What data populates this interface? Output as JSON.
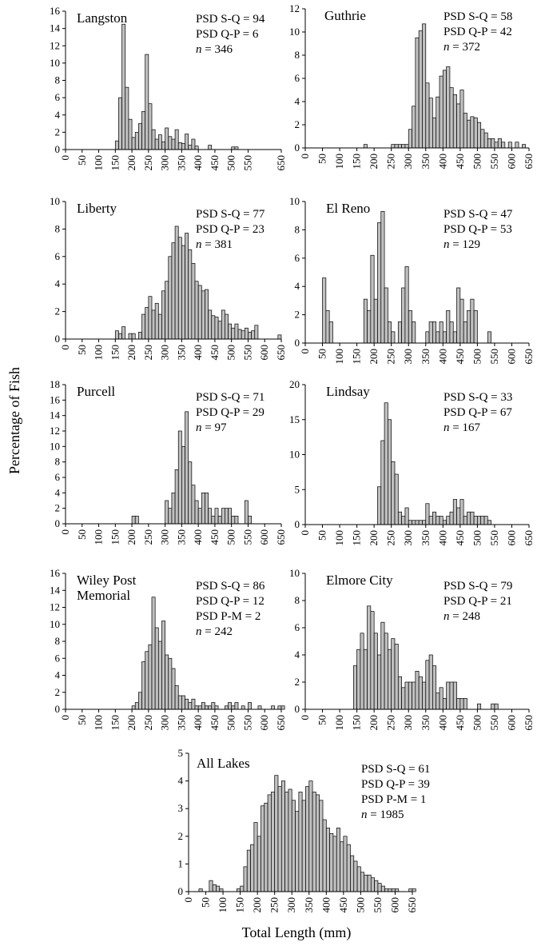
{
  "figure": {
    "ylabel": "Percentage of Fish",
    "xlabel": "Total Length (mm)"
  },
  "chart_data": [
    {
      "type": "bar",
      "title": "Langston",
      "stats": [
        "PSD S-Q = 94",
        "PSD Q-P = 6",
        "n = 346"
      ],
      "xlim": [
        0,
        650
      ],
      "ylim": [
        0,
        16
      ],
      "yticks": [
        0,
        2,
        4,
        6,
        8,
        10,
        12,
        14,
        16
      ],
      "xticks": [
        0,
        50,
        100,
        150,
        200,
        250,
        300,
        350,
        400,
        450,
        500,
        550,
        650
      ],
      "bin_width": 10,
      "x": [
        150,
        160,
        170,
        180,
        190,
        200,
        210,
        220,
        230,
        240,
        250,
        260,
        270,
        280,
        290,
        300,
        310,
        320,
        330,
        340,
        350,
        360,
        370,
        380,
        390,
        430,
        500,
        510
      ],
      "values": [
        1.0,
        6.0,
        14.5,
        7.2,
        3.5,
        1.4,
        2.0,
        3.0,
        4.4,
        11.0,
        5.3,
        2.3,
        1.2,
        1.7,
        0.9,
        2.5,
        1.5,
        1.2,
        2.3,
        0.8,
        0.7,
        1.8,
        0.5,
        1.2,
        0.4,
        0.5,
        0.3,
        0.3
      ]
    },
    {
      "type": "bar",
      "title": "Guthrie",
      "stats": [
        "PSD S-Q = 58",
        "PSD Q-P = 42",
        "n = 372"
      ],
      "xlim": [
        0,
        650
      ],
      "ylim": [
        0,
        12
      ],
      "yticks": [
        0,
        2,
        4,
        6,
        8,
        10,
        12
      ],
      "xticks": [
        0,
        50,
        100,
        150,
        200,
        250,
        300,
        350,
        400,
        450,
        500,
        550,
        600,
        650
      ],
      "bin_width": 10,
      "x": [
        170,
        250,
        260,
        270,
        280,
        290,
        300,
        310,
        320,
        330,
        340,
        350,
        360,
        370,
        380,
        390,
        400,
        410,
        420,
        430,
        440,
        450,
        460,
        470,
        480,
        490,
        500,
        510,
        520,
        530,
        540,
        550,
        560,
        570,
        590,
        610,
        630
      ],
      "values": [
        0.3,
        0.3,
        0.3,
        0.3,
        0.3,
        0.3,
        1.6,
        3.6,
        9.5,
        10.1,
        10.7,
        5.6,
        4.3,
        2.6,
        4.4,
        6.2,
        6.7,
        7.0,
        5.2,
        4.6,
        3.8,
        5.0,
        3.0,
        2.4,
        2.7,
        2.6,
        2.2,
        1.6,
        1.3,
        0.8,
        0.8,
        0.5,
        0.8,
        0.5,
        0.5,
        0.5,
        0.3
      ]
    },
    {
      "type": "bar",
      "title": "Liberty",
      "stats": [
        "PSD S-Q = 77",
        "PSD Q-P = 23",
        "n = 381"
      ],
      "xlim": [
        0,
        650
      ],
      "ylim": [
        0,
        10
      ],
      "yticks": [
        0,
        2,
        4,
        6,
        8,
        10
      ],
      "xticks": [
        0,
        50,
        100,
        150,
        200,
        250,
        300,
        350,
        400,
        450,
        500,
        550,
        600,
        650
      ],
      "bin_width": 10,
      "x": [
        150,
        160,
        170,
        190,
        200,
        220,
        230,
        240,
        250,
        260,
        270,
        280,
        290,
        300,
        310,
        320,
        330,
        340,
        350,
        360,
        370,
        380,
        390,
        400,
        410,
        420,
        430,
        440,
        450,
        460,
        470,
        480,
        490,
        500,
        510,
        520,
        530,
        540,
        550,
        560,
        570,
        640
      ],
      "values": [
        0.6,
        0.4,
        0.9,
        0.4,
        0.4,
        0.5,
        1.8,
        2.3,
        3.1,
        2.1,
        2.6,
        1.8,
        3.5,
        4.2,
        6.0,
        7.0,
        8.2,
        7.4,
        6.8,
        7.7,
        6.5,
        5.5,
        4.2,
        3.9,
        3.5,
        3.6,
        2.1,
        1.7,
        1.6,
        1.3,
        2.1,
        1.8,
        1.1,
        0.8,
        1.1,
        0.7,
        0.6,
        0.8,
        0.5,
        0.6,
        1.0,
        0.3
      ]
    },
    {
      "type": "bar",
      "title": "El Reno",
      "stats": [
        "PSD S-Q = 47",
        "PSD Q-P = 53",
        "n = 129"
      ],
      "xlim": [
        0,
        650
      ],
      "ylim": [
        0,
        10
      ],
      "yticks": [
        0,
        2,
        4,
        6,
        8,
        10
      ],
      "xticks": [
        0,
        50,
        100,
        150,
        200,
        250,
        300,
        350,
        400,
        450,
        500,
        550,
        600,
        650
      ],
      "bin_width": 10,
      "x": [
        50,
        60,
        70,
        170,
        180,
        190,
        200,
        210,
        220,
        230,
        240,
        250,
        270,
        280,
        290,
        300,
        310,
        350,
        360,
        370,
        380,
        390,
        400,
        410,
        420,
        430,
        440,
        450,
        460,
        470,
        480,
        490,
        530
      ],
      "values": [
        4.6,
        2.3,
        1.5,
        3.1,
        2.3,
        6.2,
        3.1,
        8.5,
        9.3,
        3.9,
        1.5,
        0.8,
        1.5,
        3.9,
        5.4,
        2.3,
        1.5,
        0.8,
        1.5,
        1.5,
        0.8,
        1.5,
        0.8,
        2.3,
        1.5,
        0.8,
        3.9,
        3.1,
        1.5,
        2.3,
        3.1,
        2.3,
        0.8
      ]
    },
    {
      "type": "bar",
      "title": "Purcell",
      "stats": [
        "PSD S-Q = 71",
        "PSD Q-P = 29",
        "n =  97"
      ],
      "xlim": [
        0,
        650
      ],
      "ylim": [
        0,
        18
      ],
      "yticks": [
        0,
        2,
        4,
        6,
        8,
        10,
        12,
        14,
        16,
        18
      ],
      "xticks": [
        0,
        50,
        100,
        150,
        200,
        250,
        300,
        350,
        400,
        450,
        500,
        550,
        600,
        650
      ],
      "bin_width": 10,
      "x": [
        200,
        210,
        300,
        310,
        320,
        330,
        340,
        350,
        360,
        370,
        380,
        390,
        400,
        410,
        420,
        430,
        440,
        450,
        460,
        470,
        480,
        490,
        500,
        510,
        540,
        550
      ],
      "values": [
        1.0,
        1.0,
        3.0,
        2.0,
        4.0,
        7.0,
        12.0,
        10.0,
        14.5,
        8.0,
        5.0,
        3.0,
        2.0,
        4.0,
        4.0,
        2.0,
        1.0,
        2.0,
        1.0,
        2.0,
        2.0,
        2.0,
        1.0,
        1.0,
        3.0,
        1.0
      ]
    },
    {
      "type": "bar",
      "title": "Lindsay",
      "stats": [
        "PSD S-Q = 33",
        "PSD Q-P = 67",
        "n =  167"
      ],
      "xlim": [
        0,
        650
      ],
      "ylim": [
        0,
        20
      ],
      "yticks": [
        0,
        5,
        10,
        15,
        20
      ],
      "xticks": [
        0,
        50,
        100,
        150,
        200,
        250,
        300,
        350,
        400,
        450,
        500,
        550,
        600,
        650
      ],
      "bin_width": 10,
      "x": [
        210,
        220,
        230,
        240,
        250,
        260,
        270,
        280,
        290,
        300,
        310,
        320,
        330,
        340,
        350,
        360,
        370,
        380,
        390,
        400,
        410,
        420,
        430,
        440,
        450,
        460,
        470,
        480,
        490,
        500,
        510,
        520,
        530
      ],
      "values": [
        5.4,
        12.0,
        17.4,
        15.0,
        9.0,
        7.2,
        1.8,
        1.2,
        2.4,
        0.6,
        0.6,
        0.6,
        0.6,
        0.6,
        3.0,
        1.2,
        1.8,
        1.2,
        1.2,
        0.6,
        1.2,
        1.8,
        3.6,
        2.4,
        3.6,
        1.2,
        1.8,
        1.8,
        1.2,
        1.2,
        1.2,
        1.2,
        0.6
      ]
    },
    {
      "type": "bar",
      "title": "Wiley Post\nMemorial",
      "stats": [
        "PSD S-Q = 86",
        "PSD Q-P = 12",
        "PSD P-M = 2",
        "n =  242"
      ],
      "xlim": [
        0,
        650
      ],
      "ylim": [
        0,
        16
      ],
      "yticks": [
        0,
        2,
        4,
        6,
        8,
        10,
        12,
        14,
        16
      ],
      "xticks": [
        0,
        50,
        100,
        150,
        200,
        250,
        300,
        350,
        400,
        450,
        500,
        550,
        600,
        650
      ],
      "bin_width": 10,
      "x": [
        200,
        210,
        220,
        230,
        240,
        250,
        260,
        270,
        280,
        290,
        300,
        310,
        320,
        330,
        340,
        350,
        360,
        370,
        380,
        390,
        400,
        410,
        420,
        430,
        440,
        450,
        480,
        490,
        500,
        510,
        530,
        550,
        580,
        620,
        640,
        650
      ],
      "values": [
        0.4,
        0.8,
        2.0,
        5.6,
        6.8,
        7.6,
        13.2,
        9.6,
        8.0,
        10.4,
        6.4,
        6.0,
        4.8,
        2.8,
        1.6,
        1.6,
        1.2,
        0.8,
        1.2,
        0.4,
        0.4,
        0.8,
        0.4,
        0.4,
        0.8,
        0.4,
        0.4,
        0.8,
        0.4,
        0.8,
        0.4,
        0.8,
        0.4,
        0.4,
        0.4,
        0.4
      ]
    },
    {
      "type": "bar",
      "title": "Elmore City",
      "stats": [
        "PSD S-Q = 79",
        "PSD Q-P = 21",
        "n =  248"
      ],
      "xlim": [
        0,
        650
      ],
      "ylim": [
        0,
        10
      ],
      "yticks": [
        0,
        2,
        4,
        6,
        8,
        10
      ],
      "xticks": [
        0,
        50,
        100,
        150,
        200,
        250,
        300,
        350,
        400,
        450,
        500,
        550,
        600,
        650
      ],
      "bin_width": 10,
      "x": [
        140,
        150,
        160,
        170,
        180,
        190,
        200,
        210,
        220,
        230,
        240,
        250,
        260,
        270,
        280,
        290,
        300,
        310,
        320,
        330,
        340,
        350,
        360,
        370,
        380,
        390,
        400,
        410,
        420,
        430,
        440,
        450,
        460,
        500,
        540,
        550
      ],
      "values": [
        3.2,
        4.4,
        5.6,
        4.4,
        7.6,
        7.2,
        5.6,
        4.0,
        6.4,
        5.6,
        4.4,
        5.2,
        4.8,
        2.4,
        1.6,
        2.0,
        2.0,
        2.0,
        2.8,
        2.4,
        2.0,
        3.6,
        4.0,
        3.2,
        1.2,
        1.6,
        0.8,
        2.0,
        2.0,
        2.0,
        0.8,
        0.8,
        0.8,
        0.4,
        0.4,
        0.4
      ]
    },
    {
      "type": "bar",
      "title": "All Lakes",
      "stats": [
        "PSD S-Q = 61",
        "PSD Q-P = 39",
        "PSD P-M = 1",
        "n =  1985"
      ],
      "xlim": [
        0,
        650
      ],
      "ylim": [
        0,
        5
      ],
      "yticks": [
        0,
        1,
        2,
        3,
        4,
        5
      ],
      "xticks": [
        0,
        50,
        100,
        150,
        200,
        250,
        300,
        350,
        400,
        450,
        500,
        550,
        600,
        650
      ],
      "bin_width": 10,
      "x": [
        30,
        60,
        70,
        80,
        90,
        140,
        150,
        160,
        170,
        180,
        190,
        200,
        210,
        220,
        230,
        240,
        250,
        260,
        270,
        280,
        290,
        300,
        310,
        320,
        330,
        340,
        350,
        360,
        370,
        380,
        390,
        400,
        410,
        420,
        430,
        440,
        450,
        460,
        470,
        480,
        490,
        500,
        510,
        520,
        530,
        540,
        550,
        560,
        570,
        580,
        590,
        600,
        640,
        650
      ],
      "values": [
        0.1,
        0.4,
        0.25,
        0.2,
        0.1,
        0.1,
        0.2,
        0.9,
        1.5,
        1.7,
        2.5,
        2.0,
        3.1,
        3.2,
        3.5,
        3.6,
        4.2,
        3.8,
        4.0,
        3.6,
        3.7,
        3.3,
        2.9,
        3.6,
        3.3,
        3.8,
        4.0,
        3.6,
        3.5,
        3.3,
        2.6,
        2.3,
        2.1,
        2.0,
        2.3,
        1.8,
        2.0,
        1.7,
        1.3,
        1.1,
        0.9,
        0.7,
        0.6,
        0.6,
        0.5,
        0.4,
        0.3,
        0.2,
        0.1,
        0.1,
        0.1,
        0.1,
        0.1,
        0.1
      ]
    }
  ]
}
